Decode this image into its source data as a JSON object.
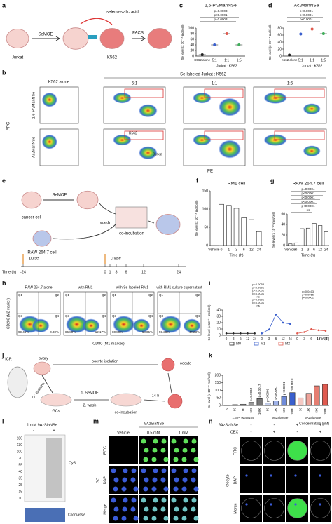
{
  "panels": {
    "letters": [
      "a",
      "b",
      "c",
      "d",
      "e",
      "f",
      "g",
      "h",
      "i",
      "j",
      "k",
      "l",
      "m",
      "n"
    ],
    "a": {
      "cell1": "Jurkat",
      "step": "SeMOE",
      "probe": "seleno-sialic acid",
      "cell2": "K562",
      "method": "FACS"
    },
    "b": {
      "alone": "K562 alone",
      "header": "Se-labeled Jurkat : K562",
      "ratios": [
        "5:1",
        "1:1",
        "1:5"
      ],
      "rows": [
        "1,6-Pr₂ManNSe",
        "Ac₄ManNSe"
      ],
      "y_axis": "APC",
      "x_axis": "PE",
      "gate1": "K562",
      "gate2": "Jurkat"
    },
    "e": {
      "cell1": "cancer cell",
      "step": "SeMOE",
      "wash": "wash",
      "cell2": "RAW 264.7 cell",
      "coinc": "co-incubation",
      "pulse": "pulse",
      "chase": "chase",
      "time_label": "Time (h)",
      "times": [
        -24,
        0,
        1,
        3,
        6,
        12,
        24
      ]
    },
    "h": {
      "titles": [
        "RAW 264.7 alone",
        "with RM1",
        "with Se-labeled RM1",
        "with RM1 culture supernatant"
      ],
      "y_axis": "CD206 (M2 marker)",
      "x_axis": "CD80 (M1 marker)",
      "quads": [
        "Q1",
        "Q2",
        "Q3",
        "Q4"
      ],
      "q3": [
        "99.46%",
        "86.80%",
        "80.89%",
        "59.38%"
      ],
      "q4": [
        "0.30%",
        "12.17%",
        "18.05%",
        "40.23%"
      ]
    },
    "j": {
      "mouse": "ICR",
      "ovary": "ovary",
      "iso": "oocyte isolation",
      "oocyte": "oocyte",
      "gciso": "GC isolation",
      "gcs": "GCs",
      "step1": "1. SeMOE",
      "step2": "2. wash",
      "coinc": "co-incubation",
      "time": "14 h"
    },
    "l": {
      "header": "1 mM 9AzSiaNSe",
      "signs": [
        "-",
        "+"
      ],
      "ladder": [
        180,
        130,
        100,
        70,
        55,
        40,
        35,
        25,
        15,
        10
      ],
      "cy5": "Cy5",
      "stain": "Coomassie"
    },
    "m": {
      "header": "9AzSiaNSe",
      "cols": [
        "Vehicle",
        "0.5 mM",
        "1 mM"
      ],
      "rows": [
        "FITC",
        "DAPI",
        "Merge"
      ],
      "cell": "GC"
    },
    "n": {
      "conds": [
        "9AzSiaNSe",
        "CBX"
      ],
      "signs": [
        [
          "-",
          "-",
          "+",
          "+"
        ],
        [
          "-",
          "+",
          "-",
          "+"
        ]
      ],
      "rows": [
        "FITC",
        "DAPI",
        "Merge"
      ],
      "cell": "Oocyte"
    }
  },
  "chart_data": [
    {
      "type": "dot",
      "title": "1,6-Pr₂ManNSe",
      "y_label": "Se level (x 10⁻¹⁵ mol/cell)",
      "categories": [
        "K562 alone",
        "5:1",
        "1:1",
        "1:5"
      ],
      "x_label": "Jurkat : K562",
      "values": [
        5,
        40,
        80,
        40
      ],
      "colors": [
        "#222222",
        "#3a5fcd",
        "#e05a4f",
        "#3fae5a"
      ],
      "ylim": [
        0,
        100
      ],
      "yticks": [
        0,
        20,
        40,
        60,
        80,
        100
      ],
      "annotations": [
        "p=0.0003",
        "p<0.0001",
        "p=0.0003"
      ]
    },
    {
      "type": "dot",
      "title": "Ac₄ManNSe",
      "y_label": "Se level (x 10⁻¹⁵ mol/cell)",
      "categories": [
        "K562 alone",
        "5:1",
        "1:1",
        "1:5"
      ],
      "x_label": "Jurkat : K562",
      "values": [
        3,
        63,
        77,
        64
      ],
      "colors": [
        "#222222",
        "#3a5fcd",
        "#e05a4f",
        "#3fae5a"
      ],
      "ylim": [
        0,
        80
      ],
      "yticks": [
        0,
        20,
        40,
        60,
        80
      ],
      "annotations": [
        "p<0.0001",
        "p<0.0001",
        "p<0.0001"
      ]
    },
    {
      "type": "bar",
      "title": "RM1 cell",
      "y_label": "Se level (x 10⁻¹⁵ mol/cell)",
      "categories": [
        "Vehicle",
        "0",
        "1",
        "3",
        "6",
        "12",
        "24"
      ],
      "x_label": "Time (h)",
      "values": [
        0,
        113,
        110,
        102,
        76,
        71,
        38
      ],
      "color": "#ffffff",
      "ylim": [
        0,
        150
      ],
      "yticks": [
        0,
        50,
        100,
        150
      ]
    },
    {
      "type": "bar",
      "title": "RAW 264.7 cell",
      "y_label": "Se level (x 10⁻¹⁵ mol/cell)",
      "categories": [
        "Vehicle",
        "0",
        "1",
        "3",
        "6",
        "12",
        "24"
      ],
      "x_label": "Time (h)",
      "values": [
        3,
        5,
        32,
        33,
        42,
        38,
        26
      ],
      "color": "#ffffff",
      "ylim": [
        0,
        60
      ],
      "yticks": [
        0,
        20,
        40,
        60
      ],
      "annotations": [
        "p=0.0004",
        "p<0.0001",
        "p<0.0001",
        "p<0.0001",
        "p<0.0001",
        "ns"
      ]
    },
    {
      "type": "grouped-line",
      "y_label": "Se level (x 10⁻¹⁵ mol/cell)",
      "categories": [
        "0",
        "3",
        "6",
        "12",
        "24"
      ],
      "x_label": "Time [h]",
      "series": [
        {
          "name": "M0",
          "color": "#222222",
          "values": [
            3,
            3,
            3,
            3,
            3
          ]
        },
        {
          "name": "M1",
          "color": "#3a5fcd",
          "values": [
            3,
            9,
            33,
            20,
            18
          ]
        },
        {
          "name": "M2",
          "color": "#e05a4f",
          "values": [
            3,
            5,
            10,
            8,
            7
          ]
        }
      ],
      "ylim": [
        0,
        40
      ],
      "yticks": [
        0,
        10,
        20,
        30,
        40
      ],
      "annotations": [
        "p=0.0058",
        "p<0.0001",
        "p<0.0001",
        "p<0.0001",
        "ns",
        "p=0.0001",
        "p<0.0001",
        "ns",
        "p=0.0463",
        "p=0.0066",
        "p<0.0001"
      ]
    },
    {
      "type": "bar",
      "y_label": "Se level (x 10⁻¹⁵ mol/cell)",
      "categories": [
        "0",
        "50",
        "100",
        "500",
        "1000",
        "50",
        "100",
        "500",
        "1000",
        "50",
        "100",
        "500",
        "1000"
      ],
      "groups": [
        "1,6-Pr₂ManNSe",
        "9AzSiaNSe",
        "9AzSiaNSe"
      ],
      "x_label": "Concentration (μM)",
      "values": [
        2,
        5,
        8,
        20,
        45,
        15,
        30,
        60,
        85,
        50,
        80,
        130,
        140
      ],
      "colors": [
        "#ffffff",
        "#dddddd",
        "#bbbbbb",
        "#999999",
        "#777777",
        "#c9d4f2",
        "#9fb2e8",
        "#6f8bd9",
        "#3a5fcd",
        "#f5c9c4",
        "#eea39a",
        "#e67e72",
        "#e05a4f"
      ],
      "ylim": [
        0,
        200
      ],
      "yticks": [
        0,
        50,
        100,
        150,
        200
      ],
      "annotations": [
        "p=0.0043",
        "p=0.0017",
        "p<0.0001",
        "p<0.0001",
        "p<0.0001",
        "p<0.0001"
      ]
    }
  ]
}
